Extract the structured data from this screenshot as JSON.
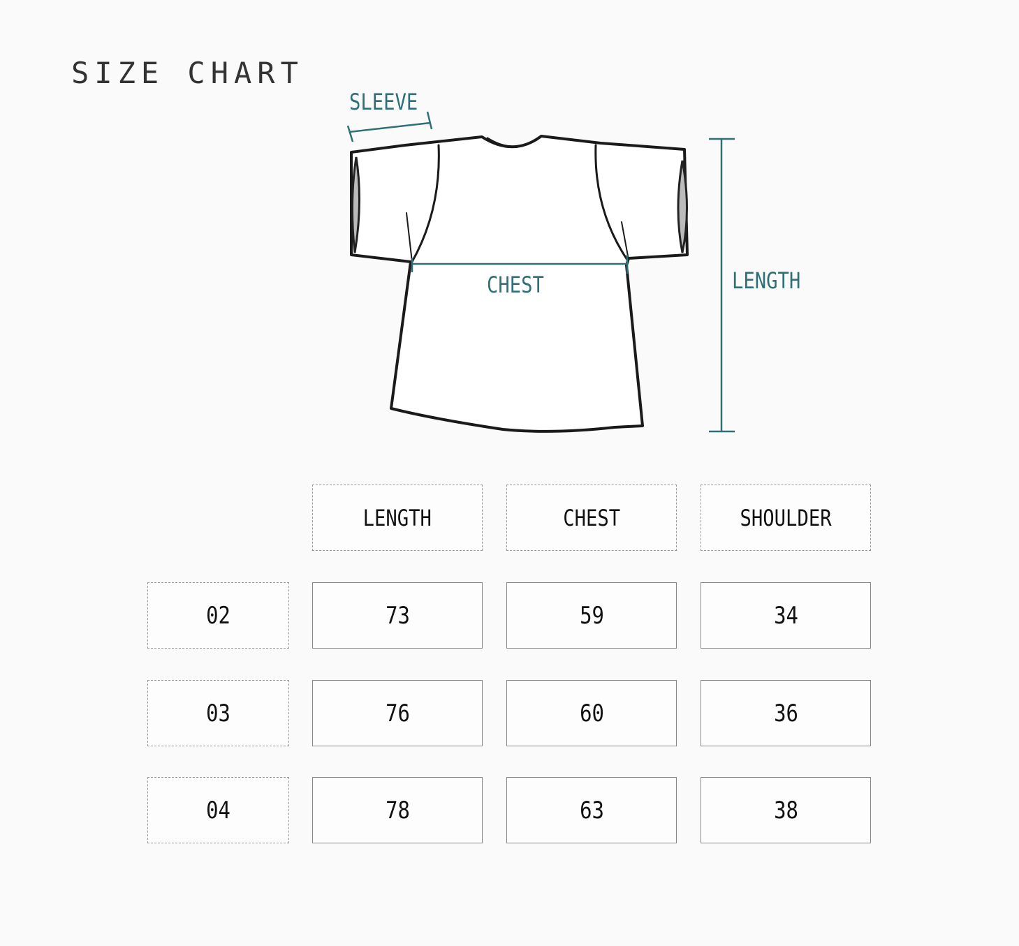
{
  "title": "SIZE CHART",
  "diagram": {
    "labels": {
      "sleeve": "SLEEVE",
      "chest": "CHEST",
      "length": "LENGTH"
    },
    "accent_color": "#2e6f78"
  },
  "table": {
    "headers": [
      "LENGTH",
      "CHEST",
      "SHOULDER"
    ],
    "rows": [
      {
        "size": "02",
        "values": [
          "73",
          "59",
          "34"
        ]
      },
      {
        "size": "03",
        "values": [
          "76",
          "60",
          "36"
        ]
      },
      {
        "size": "04",
        "values": [
          "78",
          "63",
          "38"
        ]
      }
    ]
  }
}
